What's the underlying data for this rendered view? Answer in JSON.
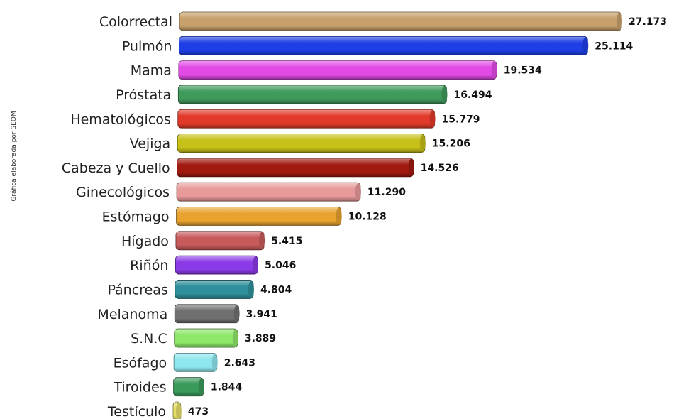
{
  "side_note": "Gráfica elaborada por SEOM",
  "chart_data": {
    "type": "bar",
    "orientation": "horizontal",
    "categories": [
      "Colorrectal",
      "Pulmón",
      "Mama",
      "Próstata",
      "Hematológicos",
      "Vejiga",
      "Cabeza y Cuello",
      "Ginecológicos",
      "Estómago",
      "Hígado",
      "Riñón",
      "Páncreas",
      "Melanoma",
      "S.N.C",
      "Esófago",
      "Tiroides",
      "Testículo"
    ],
    "values": [
      27173,
      25114,
      19534,
      16494,
      15779,
      15206,
      14526,
      11290,
      10128,
      5415,
      5046,
      4804,
      3941,
      3889,
      2643,
      1844,
      473
    ],
    "value_labels": [
      "27.173",
      "25.114",
      "19.534",
      "16.494",
      "15.779",
      "15.206",
      "14.526",
      "11.290",
      "10.128",
      "5.415",
      "5.046",
      "4.804",
      "3.941",
      "3.889",
      "2.643",
      "1.844",
      "473"
    ],
    "colors": [
      "#c7a06b",
      "#1f3fe6",
      "#e24ae6",
      "#3f9a5c",
      "#e23a2a",
      "#c6c018",
      "#a01a10",
      "#e89a9a",
      "#e8a22e",
      "#c75a5a",
      "#8a3ae6",
      "#2f8f9a",
      "#707070",
      "#8ee86a",
      "#8ee6ee",
      "#3a9a5a",
      "#e6e06a"
    ],
    "xlim": [
      0,
      27173
    ],
    "title": "",
    "xlabel": "",
    "ylabel": "",
    "grid": false,
    "legend": "none"
  }
}
